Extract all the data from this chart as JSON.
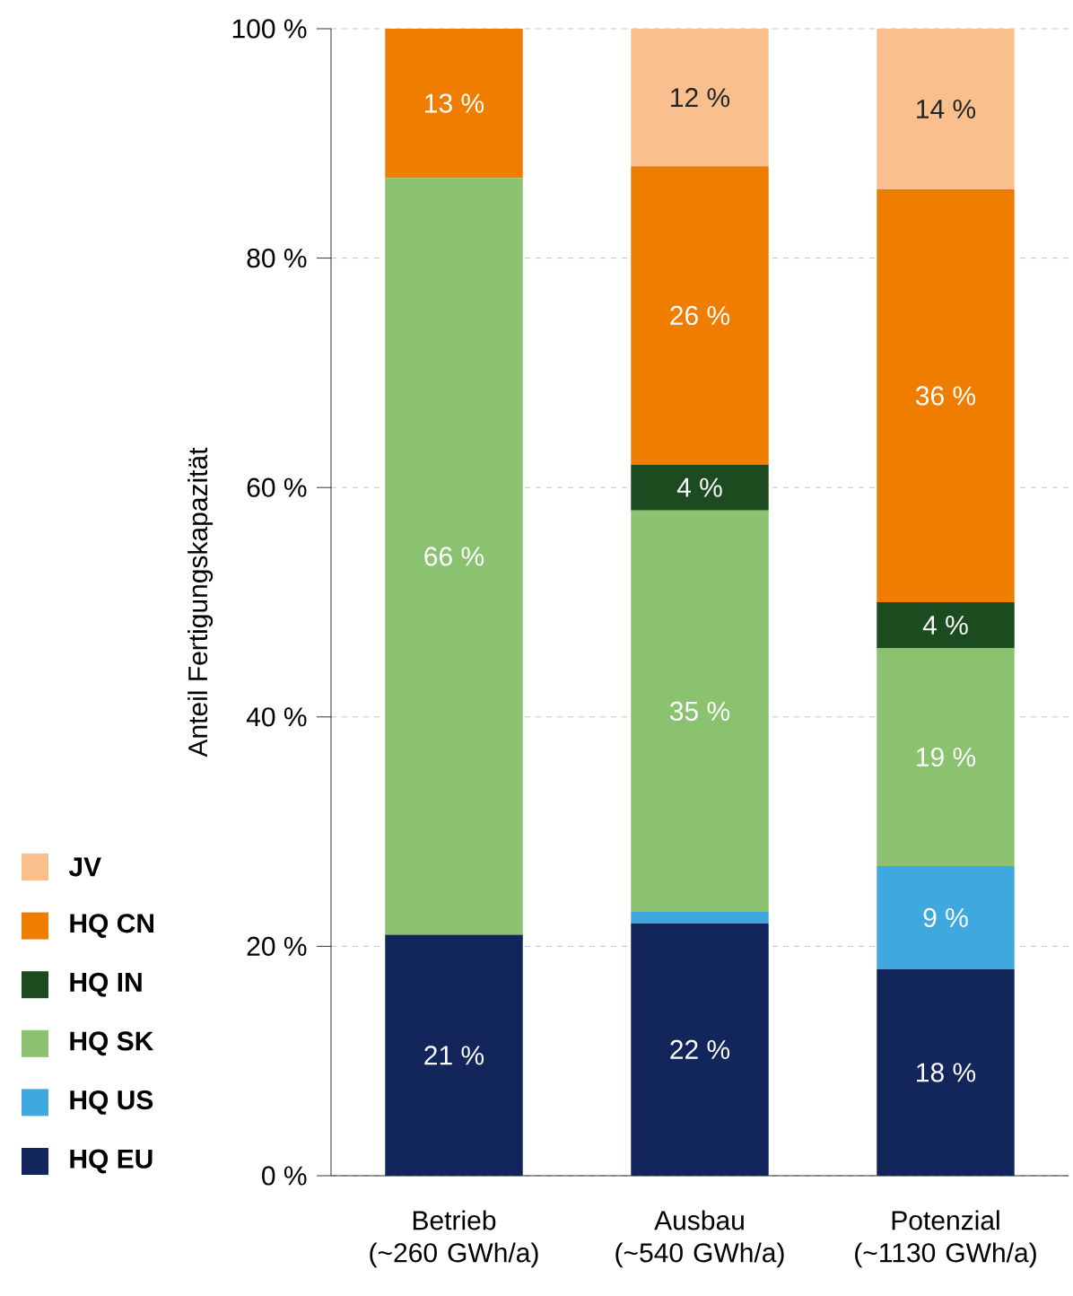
{
  "chart_data": {
    "type": "bar",
    "stacked": true,
    "ylabel": "Anteil Fertigungskapazität",
    "categories": [
      "Betrieb (~260 GWh/a)",
      "Ausbau (~540 GWh/a)",
      "Potenzial (~1130 GWh/a)"
    ],
    "ylim": [
      0,
      100
    ],
    "yticks": [
      {
        "value": 0,
        "label": "0 %"
      },
      {
        "value": 20,
        "label": "20 %"
      },
      {
        "value": 40,
        "label": "40 %"
      },
      {
        "value": 60,
        "label": "60 %"
      },
      {
        "value": 80,
        "label": "80 %"
      },
      {
        "value": 100,
        "label": "100 %"
      }
    ],
    "grid": "y",
    "legend": "bottom left",
    "series": [
      {
        "name": "HQ EU",
        "color": "#12265c",
        "values": [
          21,
          22,
          18
        ],
        "value_labels": [
          "21 %",
          "22 %",
          "18 %"
        ]
      },
      {
        "name": "HQ US",
        "color": "#3ea8df",
        "values": [
          0,
          1,
          9
        ],
        "value_labels": [
          null,
          null,
          "9 %"
        ]
      },
      {
        "name": "HQ SK",
        "color": "#8bc270",
        "values": [
          66,
          35,
          19
        ],
        "value_labels": [
          "66 %",
          "35 %",
          "19 %"
        ]
      },
      {
        "name": "HQ IN",
        "color": "#1b4b1f",
        "values": [
          0,
          4,
          4
        ],
        "value_labels": [
          null,
          "4 %",
          "4 %"
        ]
      },
      {
        "name": "HQ CN",
        "color": "#ef7d00",
        "values": [
          13,
          26,
          36
        ],
        "value_labels": [
          "13 %",
          "26 %",
          "36 %"
        ]
      },
      {
        "name": "JV",
        "color": "#f9c08e",
        "values": [
          0,
          12,
          14
        ],
        "value_labels": [
          null,
          "12 %",
          "14 %"
        ]
      }
    ]
  }
}
